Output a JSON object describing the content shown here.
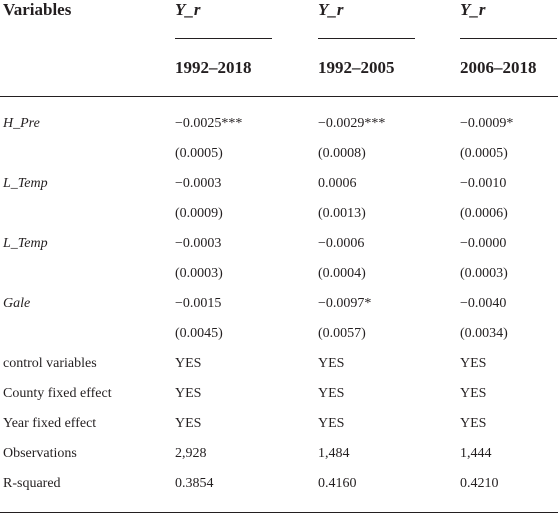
{
  "header": {
    "variables_label": "Variables",
    "dep_vars": [
      "Y_r",
      "Y_r",
      "Y_r"
    ],
    "periods": [
      "1992–2018",
      "1992–2005",
      "2006–2018"
    ]
  },
  "rows": [
    {
      "label": "H_Pre",
      "italic": true,
      "values": [
        "−0.0025***",
        "−0.0029***",
        "−0.0009*"
      ]
    },
    {
      "label": "",
      "italic": false,
      "values": [
        "(0.0005)",
        "(0.0008)",
        "(0.0005)"
      ]
    },
    {
      "label": "L_Temp",
      "italic": true,
      "values": [
        "−0.0003",
        "0.0006",
        "−0.0010"
      ]
    },
    {
      "label": "",
      "italic": false,
      "values": [
        "(0.0009)",
        "(0.0013)",
        "(0.0006)"
      ]
    },
    {
      "label": "L_Temp",
      "italic": true,
      "values": [
        "−0.0003",
        "−0.0006",
        "−0.0000"
      ]
    },
    {
      "label": "",
      "italic": false,
      "values": [
        "(0.0003)",
        "(0.0004)",
        "(0.0003)"
      ]
    },
    {
      "label": "Gale",
      "italic": true,
      "values": [
        "−0.0015",
        "−0.0097*",
        "−0.0040"
      ]
    },
    {
      "label": "",
      "italic": false,
      "values": [
        "(0.0045)",
        "(0.0057)",
        "(0.0034)"
      ]
    },
    {
      "label": "control variables",
      "italic": false,
      "values": [
        "YES",
        "YES",
        "YES"
      ]
    },
    {
      "label": "County fixed effect",
      "italic": false,
      "values": [
        "YES",
        "YES",
        "YES"
      ]
    },
    {
      "label": "Year fixed effect",
      "italic": false,
      "values": [
        "YES",
        "YES",
        "YES"
      ]
    },
    {
      "label": "Observations",
      "italic": false,
      "values": [
        "2,928",
        "1,484",
        "1,444"
      ]
    },
    {
      "label": "R-squared",
      "italic": false,
      "values": [
        "0.3854",
        "0.4160",
        "0.4210"
      ]
    }
  ]
}
